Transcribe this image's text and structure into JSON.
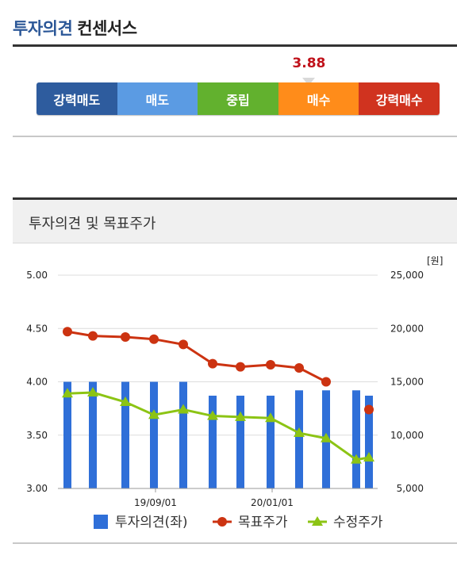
{
  "header": {
    "title_highlight": "투자의견",
    "title_rest": "컨센서스"
  },
  "consensus": {
    "score": "3.88",
    "score_value": 3.88,
    "segments": [
      {
        "label": "강력매도",
        "color": "#2e5c9e"
      },
      {
        "label": "매도",
        "color": "#5b9be3"
      },
      {
        "label": "중립",
        "color": "#62b12e"
      },
      {
        "label": "매수",
        "color": "#ff8c1a"
      },
      {
        "label": "강력매수",
        "color": "#d0331f"
      }
    ]
  },
  "panel": {
    "title": "투자의견 및 목표주가"
  },
  "chart_data": {
    "type": "bar+line",
    "unit_right": "[원]",
    "left_axis": {
      "ylim": [
        3.0,
        5.0
      ],
      "ticks": [
        "5.00",
        "4.50",
        "4.00",
        "3.50",
        "3.00"
      ]
    },
    "right_axis": {
      "ylim": [
        5000,
        25000
      ],
      "ticks": [
        "25,000",
        "20,000",
        "15,000",
        "10,000",
        "5,000"
      ]
    },
    "x_tick_labels": [
      "19/09/01",
      "20/01/01"
    ],
    "grid": true,
    "legend_position": "bottom",
    "series": [
      {
        "name": "투자의견(좌)",
        "type": "bar",
        "axis": "left",
        "color": "#2f6fd8",
        "values": [
          4.0,
          4.0,
          4.0,
          4.0,
          4.0,
          3.87,
          3.87,
          3.87,
          3.92,
          3.92,
          3.92,
          3.87
        ]
      },
      {
        "name": "목표주가",
        "type": "line",
        "axis": "right",
        "color": "#cc3311",
        "values": [
          19700,
          19300,
          19200,
          19000,
          18500,
          16700,
          16400,
          16600,
          16300,
          15000,
          null,
          12400
        ]
      },
      {
        "name": "수정주가",
        "type": "line",
        "axis": "right",
        "color": "#8cc414",
        "values": [
          13900,
          14000,
          13100,
          11900,
          12400,
          11800,
          11700,
          11600,
          10200,
          9700,
          7700,
          7900
        ]
      }
    ]
  }
}
